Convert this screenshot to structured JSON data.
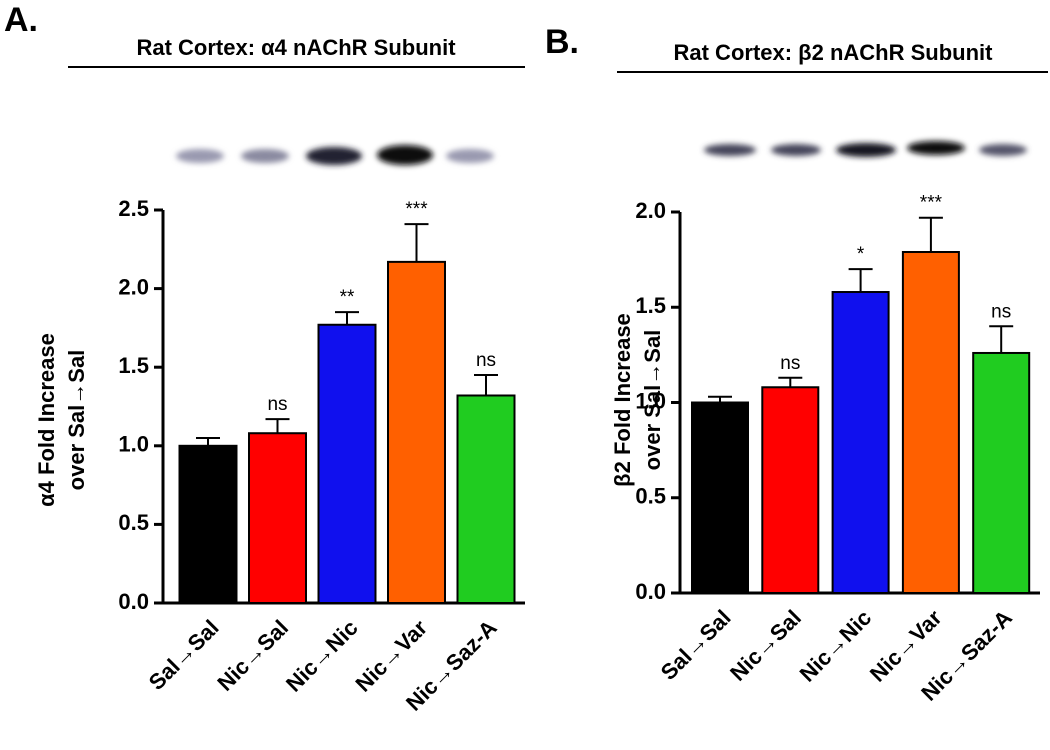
{
  "chart_data": [
    {
      "type": "bar",
      "panel_label": "A.",
      "title": "Rat Cortex: α4 nAChR Subunit",
      "ylabel": [
        "α4 Fold Increase",
        "over Sal→Sal"
      ],
      "categories": [
        "Sal→Sal",
        "Nic→Sal",
        "Nic→Nic",
        "Nic→Var",
        "Nic→Saz-A"
      ],
      "values": [
        1.0,
        1.08,
        1.77,
        2.17,
        1.32
      ],
      "errors": [
        0.05,
        0.09,
        0.08,
        0.24,
        0.13
      ],
      "annotations": [
        null,
        "ns",
        "**",
        "***",
        "ns"
      ],
      "colors": [
        "#000000",
        "#ff0000",
        "#1010ee",
        "#ff6000",
        "#20cc20"
      ],
      "ylim": [
        0,
        2.5
      ],
      "yticks": [
        {
          "value": 0,
          "label": "0.0"
        },
        {
          "value": 0.5,
          "label": "0.5"
        },
        {
          "value": 1,
          "label": "1.0"
        },
        {
          "value": 1.5,
          "label": "1.5"
        },
        {
          "value": 2,
          "label": "2.0"
        },
        {
          "value": 2.5,
          "label": "2.5"
        }
      ]
    },
    {
      "type": "bar",
      "panel_label": "B.",
      "title": "Rat Cortex: β2 nAChR Subunit",
      "ylabel": [
        "β2 Fold Increase",
        "over Sal→Sal"
      ],
      "categories": [
        "Sal→Sal",
        "Nic→Sal",
        "Nic→Nic",
        "Nic→Var",
        "Nic→Saz-A"
      ],
      "values": [
        1.0,
        1.08,
        1.58,
        1.79,
        1.26
      ],
      "errors": [
        0.03,
        0.05,
        0.12,
        0.18,
        0.14
      ],
      "annotations": [
        null,
        "ns",
        "*",
        "***",
        "ns"
      ],
      "colors": [
        "#000000",
        "#ff0000",
        "#1010ee",
        "#ff6000",
        "#20cc20"
      ],
      "ylim": [
        0,
        2.0
      ],
      "yticks": [
        {
          "value": 0,
          "label": "0.0"
        },
        {
          "value": 0.5,
          "label": "0.5"
        },
        {
          "value": 1,
          "label": "1.0"
        },
        {
          "value": 1.5,
          "label": "1.5"
        },
        {
          "value": 2,
          "label": "2.0"
        }
      ]
    }
  ]
}
